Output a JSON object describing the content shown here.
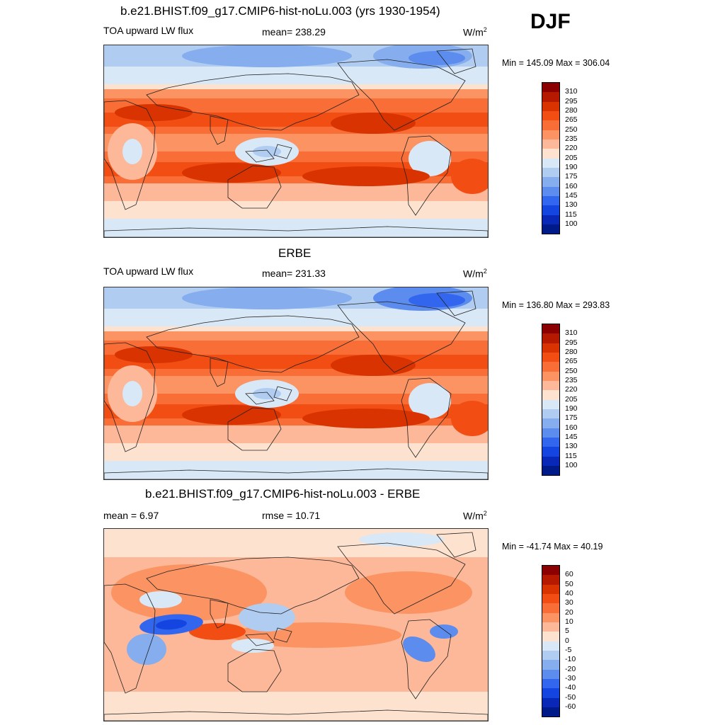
{
  "season": "DJF",
  "panels": [
    {
      "id": "model",
      "title": "b.e21.BHIST.f09_g17.CMIP6-hist-noLu.003 (yrs 1930-1954)",
      "left_label": "TOA upward LW flux",
      "center_label": "mean= 238.29",
      "unit": "W/m",
      "unit_sup": "2",
      "minmax": "Min = 145.09 Max = 306.04",
      "colorbar_ticks": [
        "310",
        "295",
        "280",
        "265",
        "250",
        "235",
        "220",
        "205",
        "190",
        "175",
        "160",
        "145",
        "130",
        "115",
        "100"
      ]
    },
    {
      "id": "obs",
      "title": "ERBE",
      "left_label": "TOA upward LW flux",
      "center_label": "mean= 231.33",
      "unit": "W/m",
      "unit_sup": "2",
      "minmax": "Min = 136.80 Max = 293.83",
      "colorbar_ticks": [
        "310",
        "295",
        "280",
        "265",
        "250",
        "235",
        "220",
        "205",
        "190",
        "175",
        "160",
        "145",
        "130",
        "115",
        "100"
      ]
    },
    {
      "id": "diff",
      "title": "b.e21.BHIST.f09_g17.CMIP6-hist-noLu.003 - ERBE",
      "left_label": "mean =   6.97",
      "center_label": "rmse =  10.71",
      "unit": "W/m",
      "unit_sup": "2",
      "minmax": "Min = -41.74 Max =  40.19",
      "colorbar_ticks": [
        "60",
        "50",
        "40",
        "30",
        "20",
        "10",
        "5",
        "0",
        "-5",
        "-10",
        "-20",
        "-30",
        "-40",
        "-50",
        "-60"
      ]
    }
  ],
  "colors": {
    "palette": [
      "#8b0000",
      "#b51a00",
      "#d83300",
      "#f24d12",
      "#f86e36",
      "#fb9363",
      "#fcb898",
      "#fde3cf",
      "#d8e8f6",
      "#b0cdf1",
      "#86aeee",
      "#5c8cee",
      "#3366ee",
      "#1545e0",
      "#0a28b8",
      "#001a8a"
    ],
    "coastline": "#222222"
  }
}
